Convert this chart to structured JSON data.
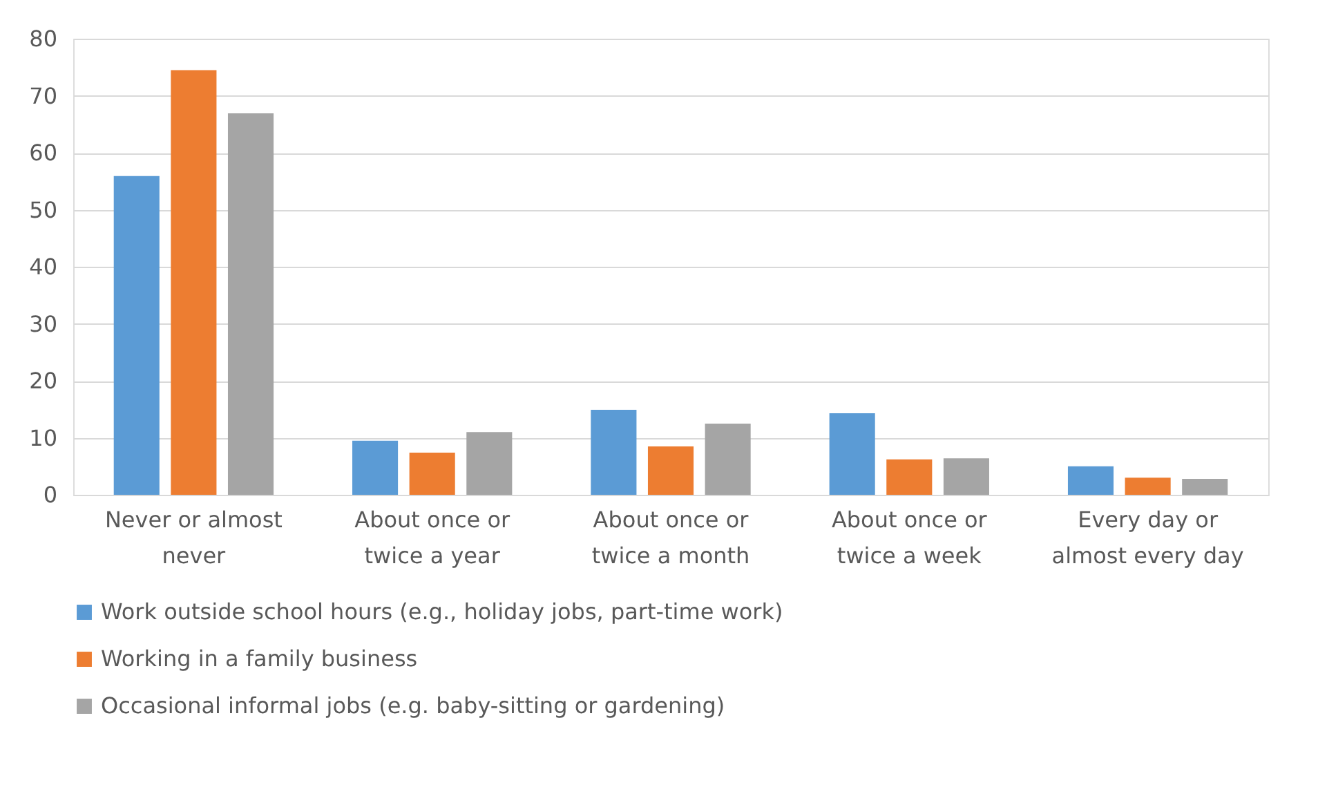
{
  "chart_data": {
    "type": "bar",
    "categories": [
      "Never or almost never",
      "About once or twice a year",
      "About once or twice a month",
      "About once or twice a week",
      "Every day or almost every day"
    ],
    "series": [
      {
        "name": "Work outside school hours (e.g., holiday jobs, part-time work)",
        "color": "#5b9bd5",
        "values": [
          55.9,
          9.5,
          14.9,
          14.3,
          5.0
        ]
      },
      {
        "name": "Working in a family business",
        "color": "#ed7d31",
        "values": [
          74.5,
          7.4,
          8.5,
          6.2,
          3.0
        ]
      },
      {
        "name": "Occasional informal jobs (e.g. baby-sitting or gardening)",
        "color": "#a5a5a5",
        "values": [
          66.9,
          11.0,
          12.5,
          6.4,
          2.8
        ]
      }
    ],
    "ylim": [
      0,
      80
    ],
    "yticks": [
      0,
      10,
      20,
      30,
      40,
      50,
      60,
      70,
      80
    ],
    "grid": "y",
    "legend": "bottom"
  }
}
